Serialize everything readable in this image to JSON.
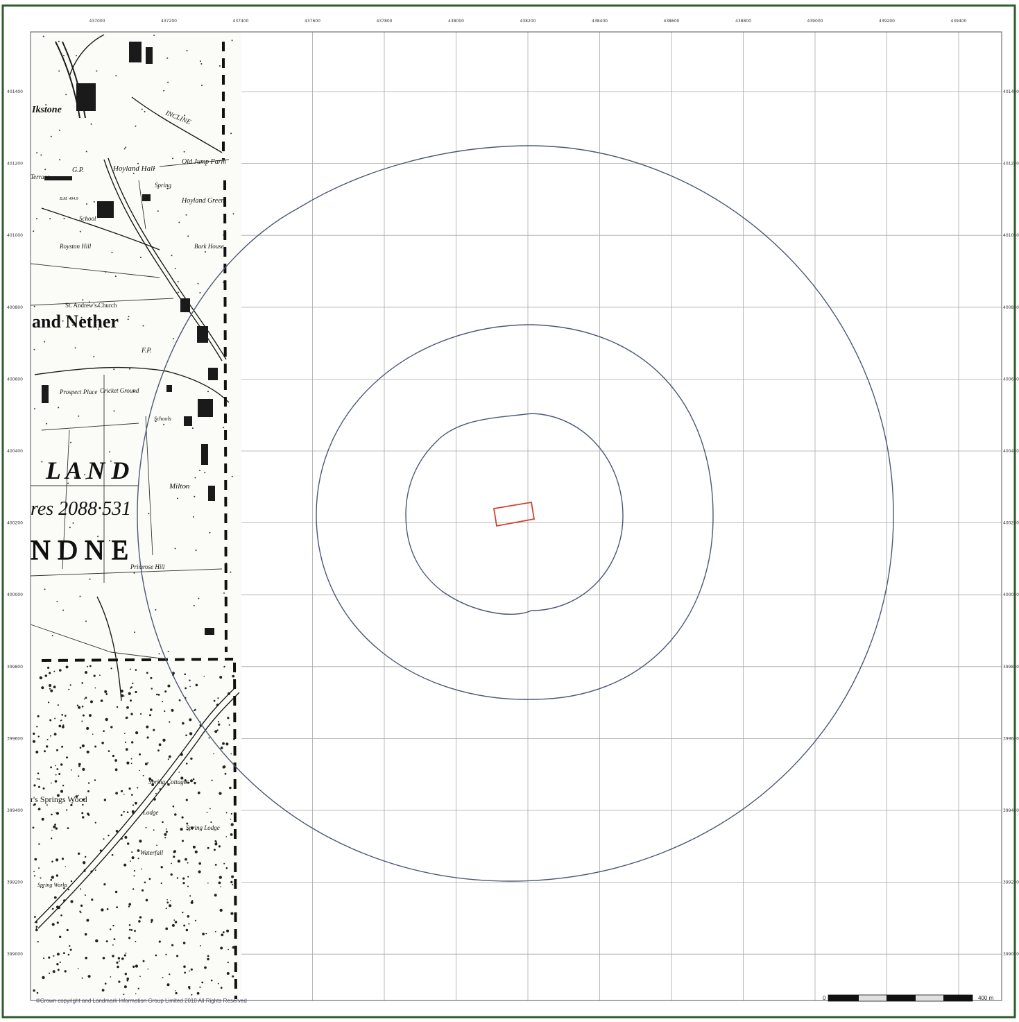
{
  "map": {
    "copyright": "©Crown copyright and Landmark Information Group Limited 2010   All Rights Reserved",
    "scale_bar": {
      "start_label": "0",
      "end_label": "400 m"
    },
    "colors": {
      "frame": "#2c5e2c",
      "grid": "#a8a8a8",
      "buffer": "#4a5872",
      "site": "#d04030",
      "historic": "#1a1a1a"
    },
    "grid": {
      "eastings": [
        "437000",
        "437200",
        "437400",
        "437600",
        "437800",
        "438000",
        "438200",
        "438400",
        "438600",
        "438800",
        "439000",
        "439200",
        "439400"
      ],
      "northings": [
        "401400",
        "401200",
        "401000",
        "400800",
        "400600",
        "400400",
        "400200",
        "400000",
        "399800",
        "399600",
        "399400",
        "399200",
        "399000"
      ]
    },
    "buffer_rings": [
      {
        "name": "inner-buffer-ring",
        "radius_m": 300
      },
      {
        "name": "middle-buffer-ring",
        "radius_m": 500
      },
      {
        "name": "outer-buffer-ring",
        "radius_m": 1000
      }
    ],
    "historic_labels": [
      {
        "name": "label-ikstone",
        "text": "Ikstone"
      },
      {
        "name": "label-incline",
        "text": "INCLINE"
      },
      {
        "name": "label-old-jump-farm",
        "text": "Old Jump Farm"
      },
      {
        "name": "label-hoyland-hall",
        "text": "Hoyland Hall"
      },
      {
        "name": "label-gp",
        "text": "G.P."
      },
      {
        "name": "label-terrace",
        "text": "Terrace"
      },
      {
        "name": "label-spring",
        "text": "Spring"
      },
      {
        "name": "label-hoyland-green",
        "text": "Hoyland Green"
      },
      {
        "name": "label-bm",
        "text": "B.M. 494.9"
      },
      {
        "name": "label-school",
        "text": "School"
      },
      {
        "name": "label-royston-hill",
        "text": "Royston Hill"
      },
      {
        "name": "label-bark-house",
        "text": "Bark House"
      },
      {
        "name": "label-st-andrews-church",
        "text": "St. Andrew's Church"
      },
      {
        "name": "label-and-nether",
        "text": "and Nether"
      },
      {
        "name": "label-fp",
        "text": "F.P."
      },
      {
        "name": "label-prospect-place",
        "text": "Prospect Place"
      },
      {
        "name": "label-cricket-ground",
        "text": "Cricket Ground"
      },
      {
        "name": "label-schools",
        "text": "Schools"
      },
      {
        "name": "label-land",
        "text": "L A N D"
      },
      {
        "name": "label-milton",
        "text": "Milton"
      },
      {
        "name": "label-acres",
        "text": "res 2088·531"
      },
      {
        "name": "label-nd-ne",
        "text": "N D     N E"
      },
      {
        "name": "label-primrose-hill",
        "text": "Primrose Hill"
      },
      {
        "name": "label-springs-wood",
        "text": "r's Springs Wood"
      },
      {
        "name": "label-spring-cottages",
        "text": "Spring Cottages"
      },
      {
        "name": "label-lodge",
        "text": "Lodge"
      },
      {
        "name": "label-spring-lodge",
        "text": "Spring Lodge"
      },
      {
        "name": "label-waterfall",
        "text": "Waterfall"
      },
      {
        "name": "label-spring-works",
        "text": "Spring Works"
      }
    ]
  }
}
